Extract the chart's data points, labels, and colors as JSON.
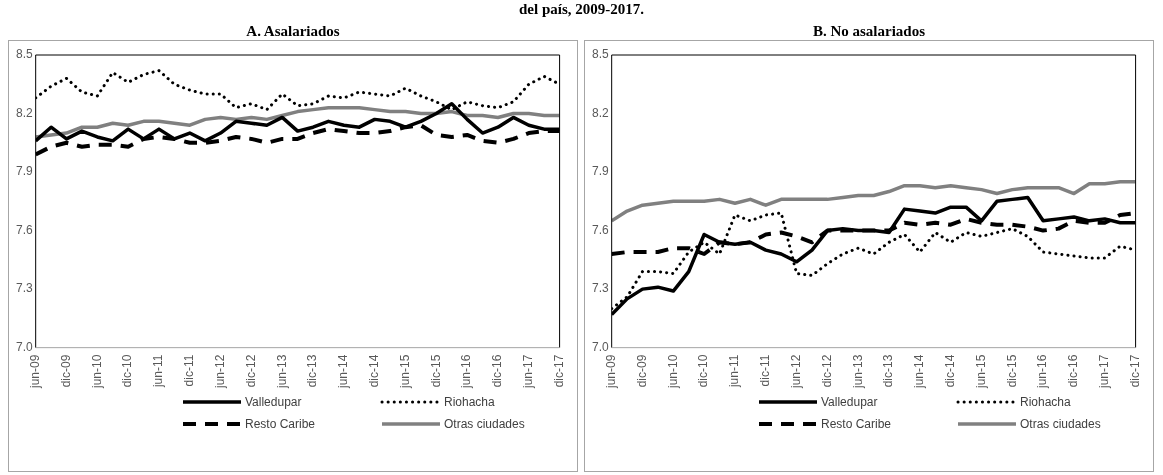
{
  "chart_data": [
    {
      "type": "line",
      "title": "A. Asalariados",
      "annotations": [
        "del país, 2009-2017."
      ],
      "x": [
        "2009-06",
        "2009-09",
        "2009-12",
        "2010-03",
        "2010-06",
        "2010-09",
        "2010-12",
        "2011-03",
        "2011-06",
        "2011-09",
        "2011-12",
        "2012-03",
        "2012-06",
        "2012-09",
        "2012-12",
        "2013-03",
        "2013-06",
        "2013-09",
        "2013-12",
        "2014-03",
        "2014-06",
        "2014-09",
        "2014-12",
        "2015-03",
        "2015-06",
        "2015-09",
        "2015-12",
        "2016-03",
        "2016-06",
        "2016-09",
        "2016-12",
        "2017-03",
        "2017-06",
        "2017-09",
        "2017-12"
      ],
      "xlim": [
        "2009-06",
        "2017-12"
      ],
      "xticks": [
        {
          "value": "2009-06",
          "label": "jun-09"
        },
        {
          "value": "2009-12",
          "label": "dic-09"
        },
        {
          "value": "2010-06",
          "label": "jun-10"
        },
        {
          "value": "2010-12",
          "label": "dic-10"
        },
        {
          "value": "2011-06",
          "label": "jun-11"
        },
        {
          "value": "2011-12",
          "label": "dic-11"
        },
        {
          "value": "2012-06",
          "label": "jun-12"
        },
        {
          "value": "2012-12",
          "label": "dic-12"
        },
        {
          "value": "2013-06",
          "label": "jun-13"
        },
        {
          "value": "2013-12",
          "label": "dic-13"
        },
        {
          "value": "2014-06",
          "label": "jun-14"
        },
        {
          "value": "2014-12",
          "label": "dic-14"
        },
        {
          "value": "2015-06",
          "label": "jun-15"
        },
        {
          "value": "2015-12",
          "label": "dic-15"
        },
        {
          "value": "2016-06",
          "label": "jun-16"
        },
        {
          "value": "2016-12",
          "label": "dic-16"
        },
        {
          "value": "2017-06",
          "label": "jun-17"
        },
        {
          "value": "2017-12",
          "label": "dic-17"
        }
      ],
      "ylim": [
        7.0,
        8.5
      ],
      "yticks": [
        {
          "value": 7.0,
          "label": "7.0"
        },
        7.3,
        7.6,
        7.9,
        8.2,
        8.5
      ],
      "grid": false,
      "legend": "bottom",
      "marker": "none",
      "series": [
        {
          "name": "Valledupar",
          "color": "#000000",
          "line_style": "solid",
          "values": [
            8.06,
            8.13,
            8.07,
            8.11,
            8.08,
            8.06,
            8.12,
            8.07,
            8.12,
            8.07,
            8.1,
            8.06,
            8.1,
            8.16,
            8.15,
            8.14,
            8.18,
            8.11,
            8.13,
            8.16,
            8.14,
            8.13,
            8.17,
            8.16,
            8.13,
            8.16,
            8.2,
            8.25,
            8.17,
            8.1,
            8.13,
            8.18,
            8.14,
            8.12,
            8.12
          ]
        },
        {
          "name": "Riohacha",
          "color": "#000000",
          "line_style": "dotted",
          "values": [
            8.28,
            8.34,
            8.38,
            8.31,
            8.29,
            8.41,
            8.36,
            8.4,
            8.42,
            8.35,
            8.32,
            8.3,
            8.3,
            8.23,
            8.25,
            8.22,
            8.3,
            8.24,
            8.25,
            8.29,
            8.28,
            8.31,
            8.3,
            8.29,
            8.33,
            8.29,
            8.26,
            8.22,
            8.26,
            8.24,
            8.23,
            8.26,
            8.35,
            8.39,
            8.35
          ]
        },
        {
          "name": "Resto Caribe",
          "color": "#000000",
          "line_style": "dashed",
          "values": [
            7.99,
            8.03,
            8.05,
            8.03,
            8.04,
            8.04,
            8.03,
            8.07,
            8.08,
            8.07,
            8.05,
            8.05,
            8.06,
            8.08,
            8.07,
            8.05,
            8.07,
            8.07,
            8.1,
            8.12,
            8.11,
            8.1,
            8.1,
            8.11,
            8.13,
            8.14,
            8.09,
            8.08,
            8.09,
            8.06,
            8.05,
            8.07,
            8.1,
            8.11,
            8.11
          ]
        },
        {
          "name": "Otras ciudades",
          "color": "#808080",
          "line_style": "solid",
          "values": [
            8.08,
            8.09,
            8.1,
            8.13,
            8.13,
            8.15,
            8.14,
            8.16,
            8.16,
            8.15,
            8.14,
            8.17,
            8.18,
            8.17,
            8.18,
            8.17,
            8.19,
            8.21,
            8.22,
            8.23,
            8.23,
            8.23,
            8.22,
            8.21,
            8.21,
            8.2,
            8.2,
            8.21,
            8.19,
            8.19,
            8.18,
            8.2,
            8.2,
            8.19,
            8.19
          ]
        }
      ]
    },
    {
      "type": "line",
      "title": "B. No asalariados",
      "x": [
        "2009-06",
        "2009-09",
        "2009-12",
        "2010-03",
        "2010-06",
        "2010-09",
        "2010-12",
        "2011-03",
        "2011-06",
        "2011-09",
        "2011-12",
        "2012-03",
        "2012-06",
        "2012-09",
        "2012-12",
        "2013-03",
        "2013-06",
        "2013-09",
        "2013-12",
        "2014-03",
        "2014-06",
        "2014-09",
        "2014-12",
        "2015-03",
        "2015-06",
        "2015-09",
        "2015-12",
        "2016-03",
        "2016-06",
        "2016-09",
        "2016-12",
        "2017-03",
        "2017-06",
        "2017-09",
        "2017-12"
      ],
      "xlim": [
        "2009-06",
        "2017-12"
      ],
      "xticks": [
        {
          "value": "2009-06",
          "label": "jun-09"
        },
        {
          "value": "2009-12",
          "label": "dic-09"
        },
        {
          "value": "2010-06",
          "label": "jun-10"
        },
        {
          "value": "2010-12",
          "label": "dic-10"
        },
        {
          "value": "2011-06",
          "label": "jun-11"
        },
        {
          "value": "2011-12",
          "label": "dic-11"
        },
        {
          "value": "2012-06",
          "label": "jun-12"
        },
        {
          "value": "2012-12",
          "label": "dic-12"
        },
        {
          "value": "2013-06",
          "label": "jun-13"
        },
        {
          "value": "2013-12",
          "label": "dic-13"
        },
        {
          "value": "2014-06",
          "label": "jun-14"
        },
        {
          "value": "2014-12",
          "label": "dic-14"
        },
        {
          "value": "2015-06",
          "label": "jun-15"
        },
        {
          "value": "2015-12",
          "label": "dic-15"
        },
        {
          "value": "2016-06",
          "label": "jun-16"
        },
        {
          "value": "2016-12",
          "label": "dic-16"
        },
        {
          "value": "2017-06",
          "label": "jun-17"
        },
        {
          "value": "2017-12",
          "label": "dic-17"
        }
      ],
      "ylim": [
        7.0,
        8.5
      ],
      "yticks": [
        {
          "value": 7.0,
          "label": "7.0"
        },
        7.3,
        7.6,
        7.9,
        8.2,
        8.5
      ],
      "grid": false,
      "legend": "bottom",
      "marker": "none",
      "series": [
        {
          "name": "Valledupar",
          "color": "#000000",
          "line_style": "solid",
          "values": [
            7.17,
            7.25,
            7.3,
            7.31,
            7.29,
            7.39,
            7.58,
            7.54,
            7.53,
            7.54,
            7.5,
            7.48,
            7.44,
            7.5,
            7.6,
            7.61,
            7.6,
            7.6,
            7.59,
            7.71,
            7.7,
            7.69,
            7.72,
            7.72,
            7.65,
            7.75,
            7.76,
            7.77,
            7.65,
            7.66,
            7.67,
            7.65,
            7.66,
            7.64,
            7.64
          ]
        },
        {
          "name": "Riohacha",
          "color": "#000000",
          "line_style": "dotted",
          "values": [
            7.2,
            7.26,
            7.39,
            7.39,
            7.38,
            7.49,
            7.54,
            7.48,
            7.68,
            7.65,
            7.68,
            7.69,
            7.38,
            7.37,
            7.43,
            7.48,
            7.51,
            7.48,
            7.54,
            7.58,
            7.49,
            7.59,
            7.54,
            7.59,
            7.57,
            7.59,
            7.61,
            7.57,
            7.49,
            7.48,
            7.47,
            7.46,
            7.46,
            7.52,
            7.5
          ]
        },
        {
          "name": "Resto Caribe",
          "color": "#000000",
          "line_style": "dashed",
          "values": [
            7.48,
            7.49,
            7.49,
            7.49,
            7.51,
            7.51,
            7.48,
            7.54,
            7.53,
            7.54,
            7.58,
            7.59,
            7.57,
            7.54,
            7.6,
            7.6,
            7.6,
            7.6,
            7.6,
            7.64,
            7.63,
            7.64,
            7.63,
            7.66,
            7.64,
            7.63,
            7.63,
            7.62,
            7.6,
            7.61,
            7.65,
            7.64,
            7.64,
            7.68,
            7.69
          ]
        },
        {
          "name": "Otras ciudades",
          "color": "#808080",
          "line_style": "solid",
          "values": [
            7.65,
            7.7,
            7.73,
            7.74,
            7.75,
            7.75,
            7.75,
            7.76,
            7.74,
            7.76,
            7.73,
            7.76,
            7.76,
            7.76,
            7.76,
            7.77,
            7.78,
            7.78,
            7.8,
            7.83,
            7.83,
            7.82,
            7.83,
            7.82,
            7.81,
            7.79,
            7.81,
            7.82,
            7.82,
            7.82,
            7.79,
            7.84,
            7.84,
            7.85,
            7.85
          ]
        }
      ]
    }
  ]
}
